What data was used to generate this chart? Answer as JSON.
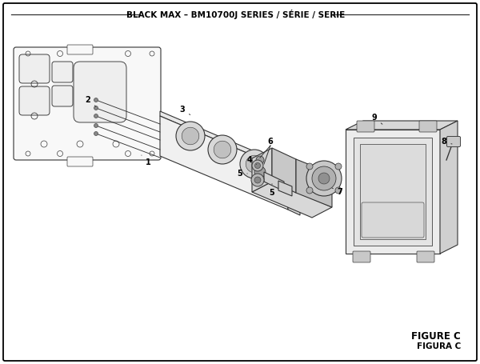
{
  "title": "BLACK MAX – BM10700J SERIES / SÉRIE / SERIE",
  "figure_label": "FIGURE C",
  "figura_label": "FIGURA C",
  "bg_color": "#ffffff",
  "border_color": "#000000",
  "line_color": "#333333",
  "lw": 0.8
}
